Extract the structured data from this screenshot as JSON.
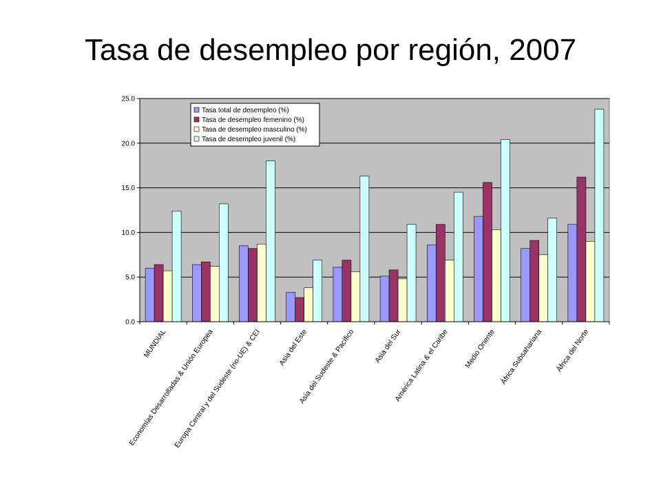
{
  "title": "Tasa de desempleo por región, 2007",
  "chart_data": {
    "type": "bar",
    "ylim": [
      0,
      25
    ],
    "ytick_labels": [
      "0.0",
      "5.0",
      "10.0",
      "15.0",
      "20.0",
      "25.0"
    ],
    "grid": true,
    "legend_position": "top-left inside plot",
    "plot_background": "#c0c0c0",
    "categories": [
      "MUNDIAL",
      "Economías Desarrolladas & Unión Europea",
      "Europa Central y del Sudeste (no-UE) & CEI",
      "Asia del Este",
      "Asia del Sudeste & Pacífico",
      "Asia del Sur",
      "América Latina & el Caribe",
      "Medio Oriente",
      "África Subsahariana",
      "África del Norte"
    ],
    "series": [
      {
        "name": "Tasa total de desempleo (%)",
        "color": "#9999ff",
        "values": [
          6.0,
          6.4,
          8.5,
          3.3,
          6.1,
          5.1,
          8.6,
          11.8,
          8.2,
          10.9
        ]
      },
      {
        "name": "Tasa de desempleo femenino (%)",
        "color": "#993366",
        "values": [
          6.4,
          6.7,
          8.2,
          2.7,
          6.9,
          5.8,
          10.9,
          15.6,
          9.1,
          16.2
        ]
      },
      {
        "name": "Tasa de desempleo masculino (%)",
        "color": "#ffffcc",
        "values": [
          5.7,
          6.2,
          8.7,
          3.8,
          5.6,
          4.8,
          6.9,
          10.3,
          7.5,
          9.0
        ]
      },
      {
        "name": "Tasa de desempleo juvenil (%)",
        "color": "#ccffff",
        "values": [
          12.4,
          13.2,
          18.0,
          6.9,
          16.3,
          10.9,
          14.5,
          20.4,
          11.6,
          23.8
        ]
      }
    ]
  }
}
